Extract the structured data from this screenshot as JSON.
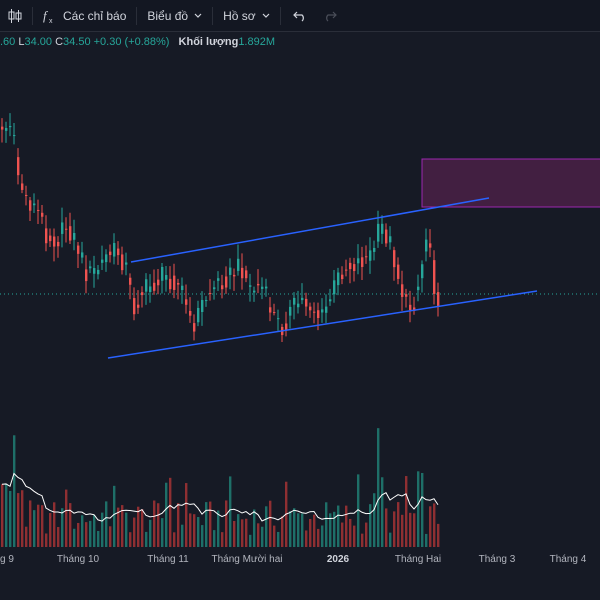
{
  "toolbar": {
    "indicators_label": "Các chỉ báo",
    "chart_label": "Biểu đồ",
    "profile_label": "Hồ sơ"
  },
  "ohlc": {
    "open_tail": ".60",
    "low_label": "L",
    "low_value": "34.00",
    "close_label": "C",
    "close_value": "34.50",
    "change": "+0.30 (+0.88%)",
    "volume_label": "Khối lượng",
    "volume_value": "1.892M"
  },
  "time_axis": [
    "g 9",
    "Tháng 10",
    "Tháng 11",
    "Tháng Mười hai",
    "2026",
    "Tháng Hai",
    "Tháng 3",
    "Tháng 4"
  ],
  "colors": {
    "up": "#26a69a",
    "down": "#ef5350",
    "trendline": "#2962ff",
    "zone_fill": "#4a2147",
    "zone_border": "#9c27b0",
    "volume_ma": "#ffffff",
    "background": "#161a25"
  },
  "icons": [
    "candles-icon",
    "fx-icon",
    "chevron-down-icon",
    "undo-icon",
    "redo-icon"
  ]
}
